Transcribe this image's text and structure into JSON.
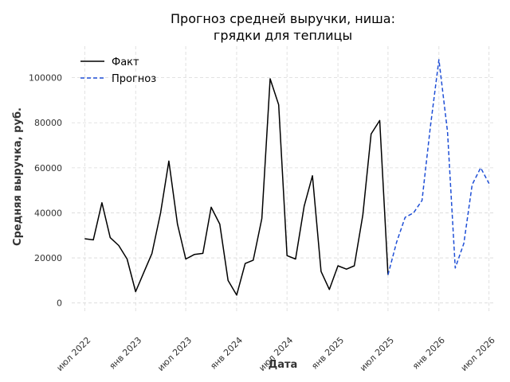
{
  "chart_data": {
    "type": "line",
    "title_line1": "Прогноз средней выручки, ниша:",
    "title_line2": "грядки для теплицы",
    "xlabel": "Дата",
    "ylabel": "Средняя выручка, руб.",
    "x_range": [
      "2022-05-15",
      "2026-07-25"
    ],
    "y_range": [
      -4000,
      114000
    ],
    "y_ticks": [
      0,
      20000,
      40000,
      60000,
      80000,
      100000
    ],
    "x_ticks": [
      {
        "date": "2022-07-01",
        "label": "июл 2022"
      },
      {
        "date": "2023-01-01",
        "label": "янв 2023"
      },
      {
        "date": "2023-07-01",
        "label": "июл 2023"
      },
      {
        "date": "2024-01-01",
        "label": "янв 2024"
      },
      {
        "date": "2024-07-01",
        "label": "июл 2024"
      },
      {
        "date": "2025-01-01",
        "label": "янв 2025"
      },
      {
        "date": "2025-07-01",
        "label": "июл 2025"
      },
      {
        "date": "2026-01-01",
        "label": "янв 2026"
      },
      {
        "date": "2026-07-01",
        "label": "июл 2026"
      }
    ],
    "grid": true,
    "legend_position": "top-left",
    "series": [
      {
        "name": "Факт",
        "color": "#000000",
        "style": "solid",
        "points": [
          [
            "2022-07-01",
            28500
          ],
          [
            "2022-08-01",
            28000
          ],
          [
            "2022-09-01",
            44500
          ],
          [
            "2022-10-01",
            29000
          ],
          [
            "2022-11-01",
            25500
          ],
          [
            "2022-12-01",
            19500
          ],
          [
            "2023-01-01",
            5000
          ],
          [
            "2023-02-01",
            14000
          ],
          [
            "2023-03-01",
            22000
          ],
          [
            "2023-04-01",
            40000
          ],
          [
            "2023-05-01",
            63000
          ],
          [
            "2023-06-01",
            35000
          ],
          [
            "2023-07-01",
            19500
          ],
          [
            "2023-08-01",
            21500
          ],
          [
            "2023-09-01",
            22000
          ],
          [
            "2023-10-01",
            42500
          ],
          [
            "2023-11-01",
            35000
          ],
          [
            "2023-12-01",
            10000
          ],
          [
            "2024-01-01",
            3500
          ],
          [
            "2024-02-01",
            17500
          ],
          [
            "2024-03-01",
            19000
          ],
          [
            "2024-04-01",
            37500
          ],
          [
            "2024-05-01",
            99500
          ],
          [
            "2024-06-01",
            88000
          ],
          [
            "2024-07-01",
            21000
          ],
          [
            "2024-08-01",
            19500
          ],
          [
            "2024-09-01",
            43000
          ],
          [
            "2024-10-01",
            56500
          ],
          [
            "2024-11-01",
            14000
          ],
          [
            "2024-12-01",
            6000
          ],
          [
            "2025-01-01",
            16500
          ],
          [
            "2025-02-01",
            15000
          ],
          [
            "2025-03-01",
            16500
          ],
          [
            "2025-04-01",
            39000
          ],
          [
            "2025-05-01",
            75000
          ],
          [
            "2025-06-01",
            81000
          ],
          [
            "2025-07-01",
            12500
          ]
        ]
      },
      {
        "name": "Прогноз",
        "color": "#1f4fd6",
        "style": "dashed",
        "points": [
          [
            "2025-07-01",
            12500
          ],
          [
            "2025-08-01",
            27000
          ],
          [
            "2025-09-01",
            38000
          ],
          [
            "2025-10-01",
            40000
          ],
          [
            "2025-11-01",
            45500
          ],
          [
            "2025-12-01",
            78000
          ],
          [
            "2026-01-01",
            108000
          ],
          [
            "2026-02-01",
            76000
          ],
          [
            "2026-03-01",
            15500
          ],
          [
            "2026-04-01",
            26500
          ],
          [
            "2026-05-01",
            52500
          ],
          [
            "2026-06-01",
            60000
          ],
          [
            "2026-07-01",
            53000
          ]
        ]
      }
    ]
  }
}
